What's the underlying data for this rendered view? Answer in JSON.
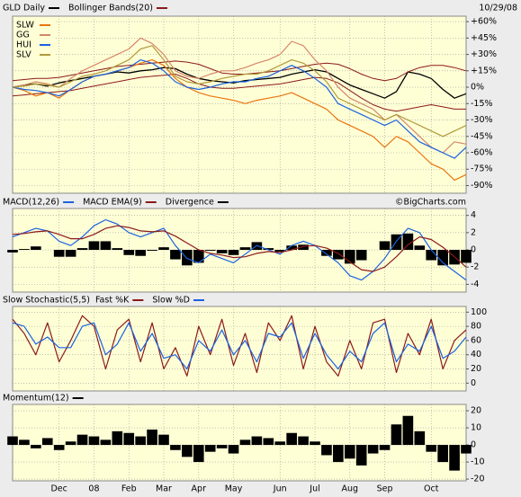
{
  "chart_data": [
    {
      "type": "line",
      "date": "10/29/08",
      "legend": "upper left",
      "grid": true,
      "ylim": [
        -97,
        65
      ],
      "yticks": [
        {
          "value": 60,
          "label": "+60%"
        },
        {
          "value": 45,
          "label": "+45%"
        },
        {
          "value": 30,
          "label": "+30%"
        },
        {
          "value": 15,
          "label": "+15%"
        },
        {
          "value": 0,
          "label": "0%"
        },
        {
          "value": -15,
          "label": "-15%"
        },
        {
          "value": -30,
          "label": "-30%"
        },
        {
          "value": -45,
          "label": "-45%"
        },
        {
          "value": -60,
          "label": "-60%"
        },
        {
          "value": -75,
          "label": "-75%"
        },
        {
          "value": -90,
          "label": "-90%"
        }
      ],
      "series": [
        {
          "name": "GLD Daily",
          "color": "#000000",
          "values": [
            0,
            2,
            3,
            1,
            4,
            6,
            8,
            10,
            12,
            14,
            13,
            15,
            16,
            18,
            17,
            12,
            8,
            6,
            5,
            4,
            6,
            7,
            8,
            9,
            12,
            14,
            16,
            14,
            8,
            2,
            -2,
            -6,
            -10,
            -4,
            14,
            12,
            8,
            -2,
            -10,
            -6
          ]
        },
        {
          "name": "Bollinger Bands(20)",
          "color": "#8b1a1a",
          "upper": [
            6,
            7,
            8,
            8,
            9,
            11,
            13,
            15,
            17,
            19,
            20,
            21,
            22,
            23,
            24,
            23,
            21,
            17,
            13,
            12,
            12,
            13,
            14,
            15,
            17,
            19,
            21,
            22,
            21,
            17,
            12,
            8,
            6,
            8,
            14,
            18,
            20,
            20,
            18,
            15
          ],
          "lower": [
            -8,
            -7,
            -6,
            -5,
            -4,
            -3,
            -1,
            1,
            3,
            5,
            7,
            9,
            10,
            11,
            12,
            8,
            3,
            0,
            -1,
            -1,
            0,
            1,
            2,
            3,
            5,
            7,
            9,
            8,
            4,
            -3,
            -10,
            -16,
            -20,
            -22,
            -20,
            -18,
            -16,
            -18,
            -20,
            -20
          ]
        },
        {
          "name": "SLW",
          "color": "#e8750f",
          "values": [
            0,
            -3,
            -8,
            -5,
            -10,
            -2,
            5,
            10,
            12,
            15,
            18,
            22,
            25,
            20,
            8,
            0,
            -5,
            -8,
            -10,
            -12,
            -15,
            -12,
            -10,
            -8,
            -5,
            -10,
            -15,
            -20,
            -30,
            -35,
            -40,
            -45,
            -55,
            -45,
            -50,
            -60,
            -70,
            -75,
            -85,
            -80
          ]
        },
        {
          "name": "GG",
          "color": "#d4876a",
          "values": [
            0,
            2,
            5,
            3,
            0,
            8,
            15,
            20,
            25,
            30,
            35,
            45,
            40,
            30,
            15,
            10,
            8,
            12,
            15,
            15,
            18,
            22,
            25,
            30,
            42,
            38,
            25,
            15,
            0,
            -10,
            -15,
            -20,
            -30,
            -25,
            -35,
            -45,
            -55,
            -60,
            -50,
            -52
          ]
        },
        {
          "name": "HUI",
          "color": "#1a62e0",
          "values": [
            0,
            -2,
            -3,
            -5,
            -8,
            -2,
            5,
            10,
            12,
            15,
            18,
            25,
            22,
            15,
            5,
            0,
            -2,
            0,
            3,
            5,
            5,
            8,
            10,
            15,
            20,
            15,
            8,
            0,
            -15,
            -20,
            -25,
            -30,
            -35,
            -30,
            -40,
            -50,
            -55,
            -60,
            -65,
            -55
          ]
        },
        {
          "name": "SLV",
          "color": "#b09a3a",
          "values": [
            0,
            1,
            3,
            2,
            0,
            5,
            10,
            12,
            15,
            20,
            25,
            35,
            38,
            25,
            10,
            5,
            3,
            5,
            8,
            10,
            12,
            12,
            15,
            20,
            25,
            22,
            15,
            5,
            -10,
            -15,
            -20,
            -25,
            -30,
            -25,
            -30,
            -35,
            -40,
            -45,
            -40,
            -35
          ]
        }
      ]
    },
    {
      "type": "line",
      "source": "©BigCharts.com",
      "grid": true,
      "ylim": [
        -4.9,
        4.8
      ],
      "yticks": [
        4,
        2,
        0,
        -2,
        -4
      ],
      "series": [
        {
          "name": "MACD(12,26)",
          "color": "#1a62e0",
          "values": [
            1.5,
            2.0,
            2.5,
            2.2,
            1.0,
            0.5,
            1.5,
            2.8,
            3.5,
            3.0,
            2.0,
            1.5,
            2.0,
            2.5,
            0.5,
            -1.0,
            -1.5,
            -0.5,
            -1.0,
            -1.5,
            -0.5,
            0.5,
            0,
            -0.5,
            0.5,
            1.0,
            0.5,
            -0.5,
            -1.5,
            -3.0,
            -3.5,
            -2.5,
            -1.0,
            1.0,
            2.5,
            2.0,
            0,
            -1.5,
            -2.5,
            -3.5
          ]
        },
        {
          "name": "MACD EMA(9)",
          "color": "#8b1a1a",
          "values": [
            1.8,
            1.9,
            2.1,
            2.2,
            1.8,
            1.3,
            1.3,
            1.8,
            2.5,
            2.8,
            2.6,
            2.2,
            2.1,
            2.2,
            1.6,
            0.8,
            0,
            -0.4,
            -0.6,
            -0.9,
            -0.8,
            -0.4,
            -0.2,
            -0.3,
            0,
            0.4,
            0.5,
            0.2,
            -0.4,
            -1.4,
            -2.3,
            -2.5,
            -2.0,
            -0.8,
            0.6,
            1.5,
            1.2,
            0.3,
            -0.8,
            -2.0
          ]
        },
        {
          "name": "Divergence",
          "type": "bar",
          "color": "#000000",
          "values": [
            -0.3,
            0.1,
            0.4,
            0,
            -0.8,
            -0.8,
            0.2,
            1.0,
            1.0,
            0.2,
            -0.6,
            -0.7,
            -0.1,
            0.3,
            -1.1,
            -1.8,
            -1.5,
            -0.1,
            -0.4,
            -0.6,
            0.3,
            0.9,
            0.2,
            -0.2,
            0.5,
            0.6,
            0,
            -0.7,
            -1.1,
            -1.6,
            -1.2,
            0,
            1.0,
            1.8,
            1.9,
            0.5,
            -1.2,
            -1.8,
            -1.7,
            -1.5
          ]
        }
      ]
    },
    {
      "type": "line",
      "title": "Slow Stochastic(5,5)",
      "grid": true,
      "ylim": [
        -11,
        108
      ],
      "yticks": [
        100,
        80,
        60,
        40,
        20,
        0
      ],
      "series": [
        {
          "name": "Fast %K",
          "color": "#8b1a1a",
          "values": [
            90,
            70,
            40,
            85,
            30,
            60,
            95,
            80,
            20,
            75,
            90,
            30,
            85,
            20,
            50,
            10,
            80,
            40,
            90,
            25,
            70,
            15,
            85,
            60,
            95,
            20,
            80,
            30,
            10,
            60,
            20,
            85,
            90,
            15,
            70,
            40,
            90,
            20,
            60,
            75
          ]
        },
        {
          "name": "Slow %D",
          "color": "#1a62e0",
          "values": [
            85,
            80,
            55,
            65,
            50,
            50,
            80,
            85,
            40,
            55,
            85,
            45,
            70,
            35,
            40,
            20,
            60,
            45,
            75,
            40,
            60,
            30,
            70,
            65,
            85,
            35,
            70,
            40,
            20,
            45,
            30,
            70,
            85,
            30,
            55,
            45,
            80,
            35,
            45,
            65
          ]
        }
      ]
    },
    {
      "type": "bar",
      "grid": true,
      "ylim": [
        -21,
        23.7
      ],
      "yticks": [
        20,
        10,
        0,
        -10,
        -20
      ],
      "categories": [
        null,
        null,
        null,
        null,
        "Dec",
        null,
        null,
        "08",
        null,
        null,
        "Feb",
        null,
        null,
        "Mar",
        null,
        null,
        "Apr",
        null,
        null,
        "May",
        null,
        null,
        null,
        "Jun",
        null,
        null,
        "Jul",
        null,
        null,
        "Aug",
        null,
        null,
        "Sep",
        null,
        null,
        null,
        "Oct",
        null,
        null,
        null
      ],
      "series": [
        {
          "name": "Momentum(12)",
          "color": "#000000",
          "values": [
            5,
            3,
            -2,
            4,
            -3,
            2,
            6,
            5,
            3,
            8,
            7,
            5,
            9,
            6,
            -3,
            -7,
            -10,
            -4,
            -2,
            -5,
            3,
            5,
            4,
            2,
            7,
            5,
            2,
            -6,
            -10,
            -8,
            -12,
            -5,
            -3,
            12,
            17,
            8,
            -4,
            -10,
            -15,
            -5
          ]
        }
      ]
    }
  ]
}
